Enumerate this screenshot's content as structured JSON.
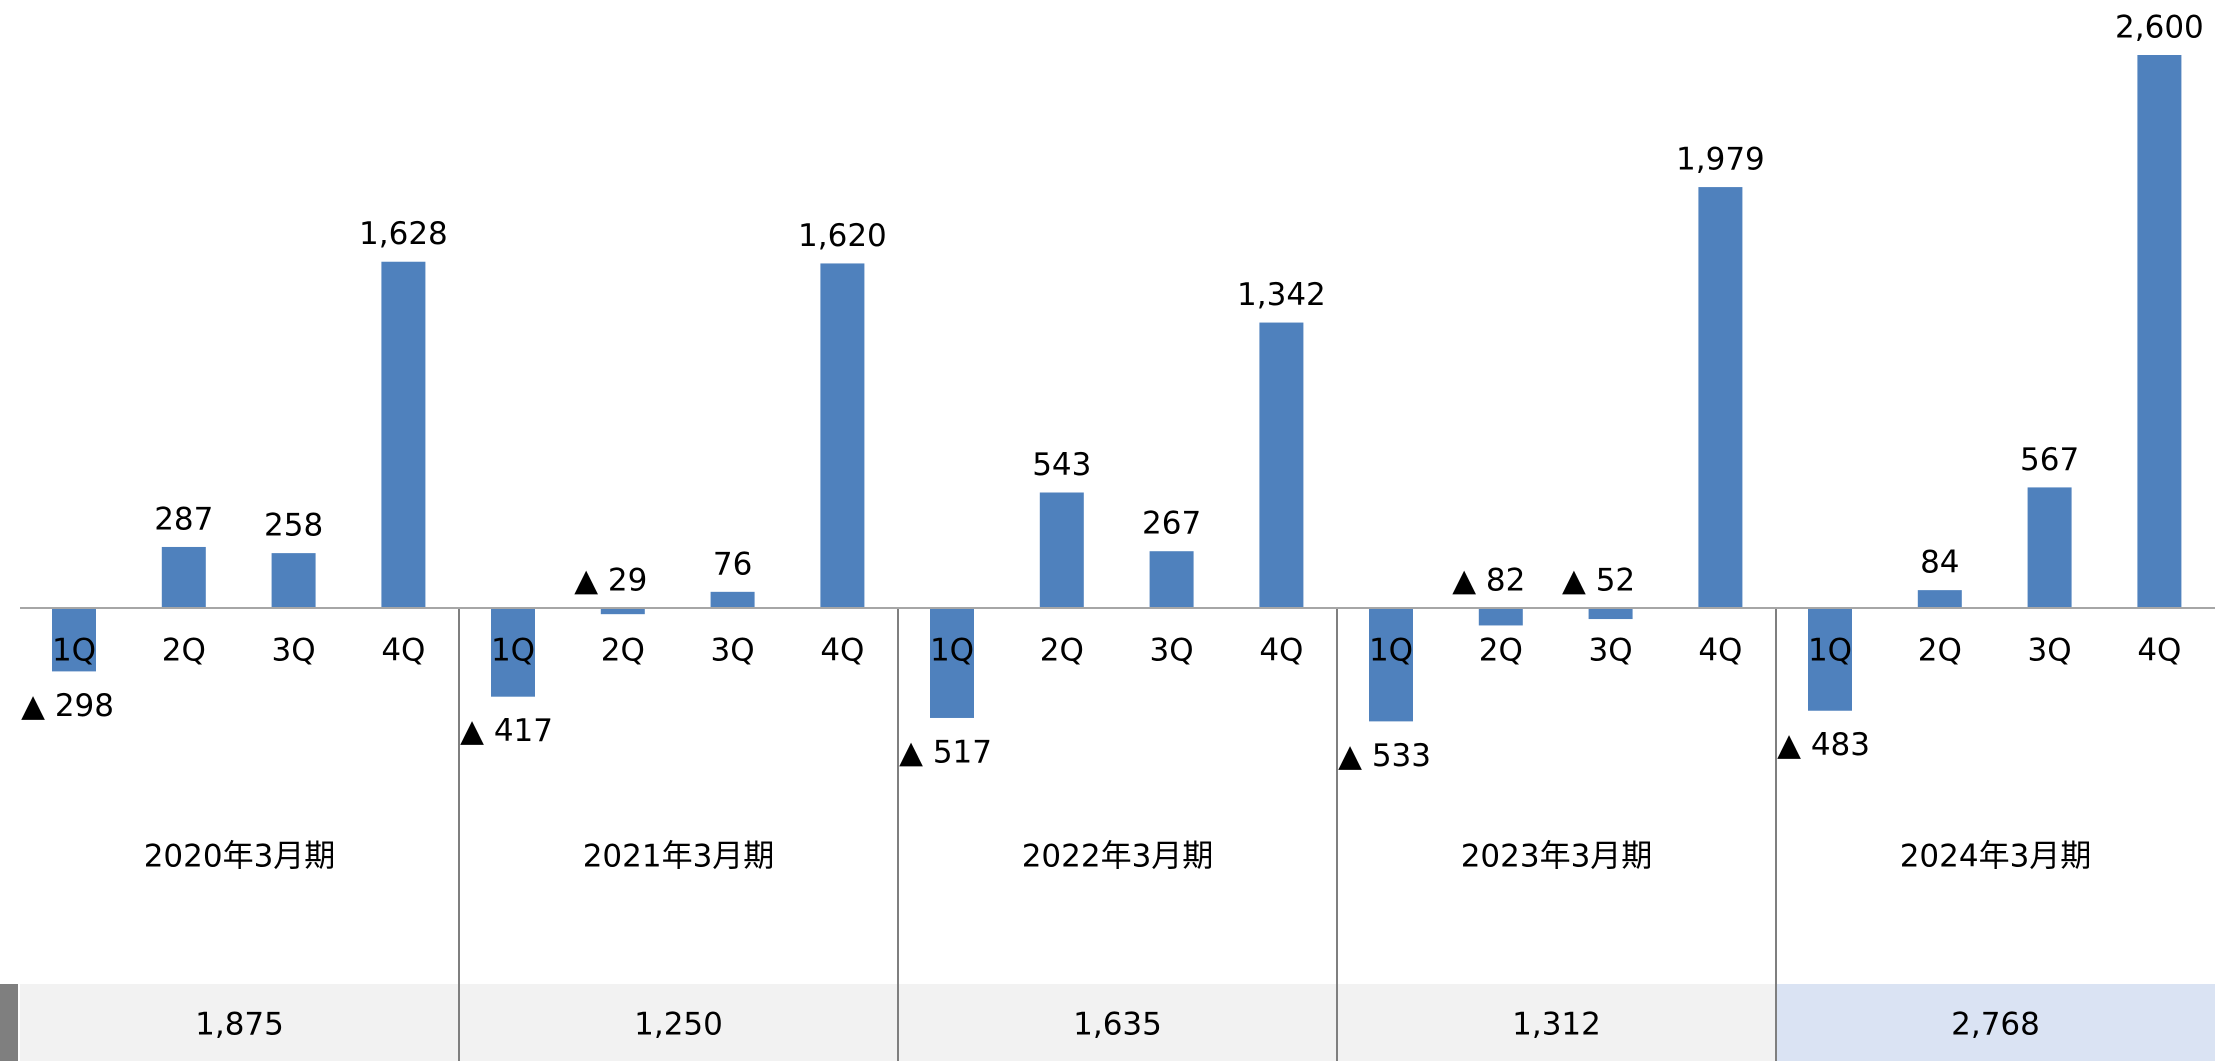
{
  "chart_data": {
    "type": "bar",
    "categories": [
      "1Q",
      "2Q",
      "3Q",
      "4Q",
      "1Q",
      "2Q",
      "3Q",
      "4Q",
      "1Q",
      "2Q",
      "3Q",
      "4Q",
      "1Q",
      "2Q",
      "3Q",
      "4Q",
      "1Q",
      "2Q",
      "3Q",
      "4Q"
    ],
    "groups": [
      "2020年3月期",
      "2021年3月期",
      "2022年3月期",
      "2023年3月期",
      "2024年3月期"
    ],
    "values": [
      -298,
      287,
      258,
      1628,
      -417,
      -29,
      76,
      1620,
      -517,
      543,
      267,
      1342,
      -533,
      -82,
      -52,
      1979,
      -483,
      84,
      567,
      2600
    ],
    "value_labels": [
      "▲ 298",
      "287",
      "258",
      "1,628",
      "▲ 417",
      "▲ 29",
      "76",
      "1,620",
      "▲ 517",
      "543",
      "267",
      "1,342",
      "▲ 533",
      "▲ 82",
      "▲ 52",
      "1,979",
      "▲ 483",
      "84",
      "567",
      "2,600"
    ],
    "color": "#4f81bd",
    "totals": [
      "1,875",
      "1,250",
      "1,635",
      "1,312",
      "2,768"
    ],
    "highlight_color": "#dae3f3"
  }
}
